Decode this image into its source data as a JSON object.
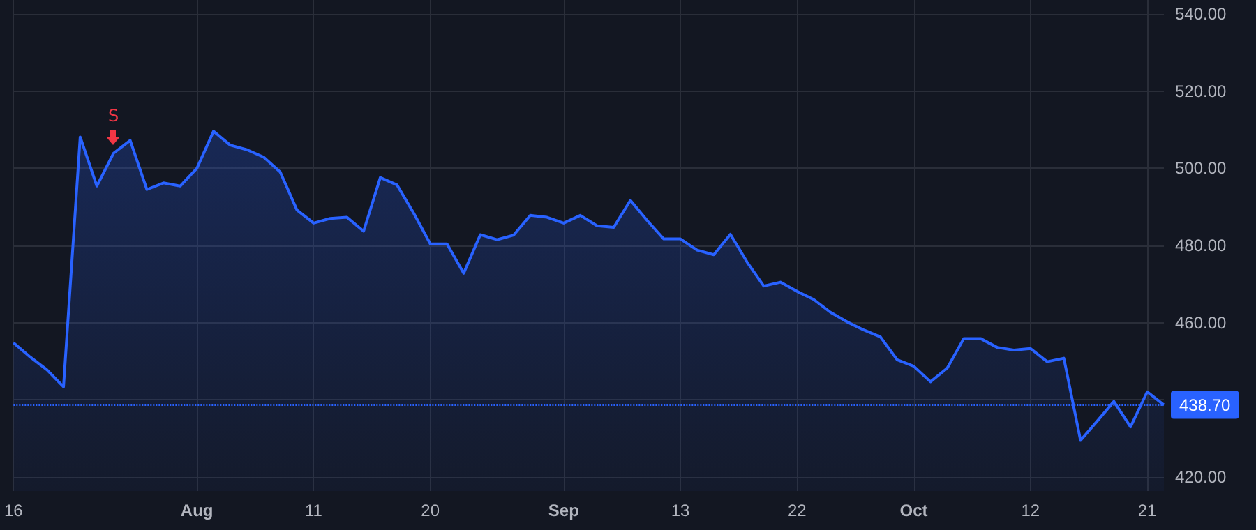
{
  "chart_data": {
    "type": "area",
    "categories": [
      "16",
      null,
      null,
      null,
      null,
      null,
      null,
      null,
      null,
      null,
      null,
      "Aug",
      null,
      null,
      null,
      null,
      null,
      null,
      "11",
      null,
      null,
      null,
      null,
      null,
      null,
      "20",
      null,
      null,
      null,
      null,
      null,
      null,
      null,
      "Sep",
      null,
      null,
      null,
      null,
      null,
      null,
      "13",
      null,
      null,
      null,
      null,
      null,
      null,
      "22",
      null,
      null,
      null,
      null,
      null,
      null,
      "Oct",
      null,
      null,
      null,
      null,
      null,
      null,
      "12",
      null,
      null,
      null,
      null,
      null,
      null,
      "21",
      null
    ],
    "series": [
      {
        "color": "#2962ff",
        "values": [
          454.8,
          451.1,
          447.8,
          443.4,
          508.1,
          495.4,
          503.9,
          507.2,
          494.5,
          496.2,
          495.4,
          500,
          509.6,
          506,
          504.8,
          502.9,
          499,
          489.2,
          485.8,
          487,
          487.3,
          483.7,
          497.6,
          495.7,
          488.4,
          480.4,
          480.4,
          472.8,
          482.8,
          481.5,
          482.7,
          487.8,
          487.3,
          485.8,
          487.8,
          485.1,
          484.7,
          491.7,
          486.5,
          481.7,
          481.7,
          478.8,
          477.6,
          482.9,
          475.7,
          469.5,
          470.5,
          468.1,
          466,
          462.7,
          460.2,
          458.1,
          456.3,
          450.4,
          448.7,
          444.7,
          448.2,
          455.9,
          455.9,
          453.6,
          452.9,
          453.3,
          449.9,
          450.8,
          429.5,
          434.5,
          439.6,
          433,
          442.1,
          438.7
        ]
      }
    ],
    "ylim": [
      416.4,
      543.6
    ],
    "yticks": [
      {
        "value": 420,
        "label": "420.00"
      },
      {
        "value": 440,
        "label": null
      },
      {
        "value": 460,
        "label": "460.00"
      },
      {
        "value": 480,
        "label": "480.00"
      },
      {
        "value": 500,
        "label": "500.00"
      },
      {
        "value": 520,
        "label": "520.00"
      },
      {
        "value": 540,
        "label": "540.00"
      }
    ],
    "ref_lines": [
      {
        "axis": "y",
        "value": 438.7,
        "label": "438.70",
        "color": "#2962ff",
        "line_style": "dotted"
      }
    ],
    "annotations": [
      {
        "text": "S",
        "y": 503.9
      }
    ],
    "grid": true,
    "marker": "none",
    "line_style": "solid"
  }
}
